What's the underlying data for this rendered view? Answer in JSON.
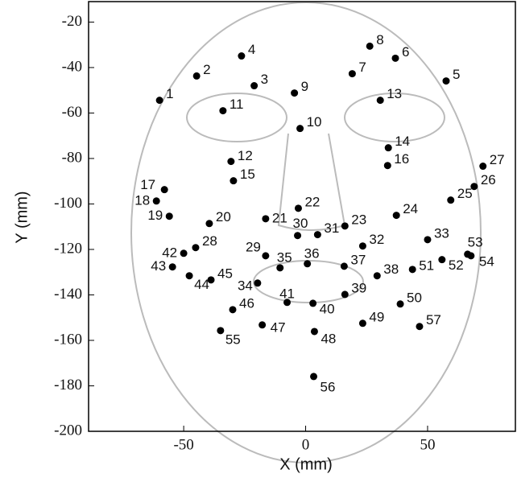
{
  "chart_data": {
    "type": "scatter",
    "xlabel": "X (mm)",
    "ylabel": "Y (mm)",
    "xlim": [
      -89,
      86
    ],
    "ylim": [
      -200,
      -11
    ],
    "xticks": [
      -50,
      0,
      50
    ],
    "yticks": [
      -20,
      -40,
      -60,
      -80,
      -100,
      -120,
      -140,
      -160,
      -180,
      -200
    ],
    "color": "#000000",
    "x": [
      -59.9,
      -44.7,
      -21.1,
      -26.3,
      57.6,
      36.8,
      19.1,
      26.3,
      -4.6,
      -2.3,
      -33.9,
      -30.6,
      30.6,
      33.9,
      -29.6,
      33.6,
      -57.9,
      -61.2,
      -55.9,
      -39.5,
      -16.4,
      -3.0,
      16.1,
      37.2,
      59.5,
      69.1,
      72.7,
      -45.1,
      -16.4,
      -3.3,
      4.9,
      23.4,
      50.0,
      -19.7,
      -10.5,
      0.7,
      15.8,
      29.3,
      16.1,
      3.0,
      -7.6,
      -50.0,
      -54.6,
      -47.7,
      -38.8,
      -29.9,
      -17.8,
      3.6,
      23.4,
      38.8,
      43.8,
      55.9,
      66.4,
      67.8,
      -34.9,
      3.3,
      46.7
    ],
    "y": [
      -54.4,
      -43.7,
      -48.0,
      -34.9,
      -45.9,
      -35.9,
      -42.7,
      -30.6,
      -51.2,
      -66.8,
      -59.0,
      -81.3,
      -54.4,
      -75.3,
      -89.8,
      -83.1,
      -93.7,
      -98.7,
      -105.4,
      -108.6,
      -106.5,
      -101.9,
      -109.7,
      -105.0,
      -98.3,
      -92.3,
      -83.4,
      -119.2,
      -122.8,
      -113.9,
      -113.5,
      -118.5,
      -115.7,
      -134.8,
      -128.1,
      -126.3,
      -127.4,
      -131.6,
      -139.8,
      -143.7,
      -143.3,
      -121.7,
      -127.7,
      -131.6,
      -133.4,
      -146.5,
      -153.2,
      -156.1,
      -152.5,
      -144.0,
      -128.8,
      -124.5,
      -122.1,
      -122.8,
      -155.7,
      -175.9,
      -153.9
    ],
    "labels": [
      1,
      2,
      3,
      4,
      5,
      6,
      7,
      8,
      9,
      10,
      11,
      12,
      13,
      14,
      15,
      16,
      17,
      18,
      19,
      20,
      21,
      22,
      23,
      24,
      25,
      26,
      27,
      28,
      29,
      30,
      31,
      32,
      33,
      34,
      35,
      36,
      37,
      38,
      39,
      40,
      41,
      42,
      43,
      44,
      45,
      46,
      47,
      48,
      49,
      50,
      51,
      52,
      53,
      54,
      55,
      56,
      57
    ]
  }
}
